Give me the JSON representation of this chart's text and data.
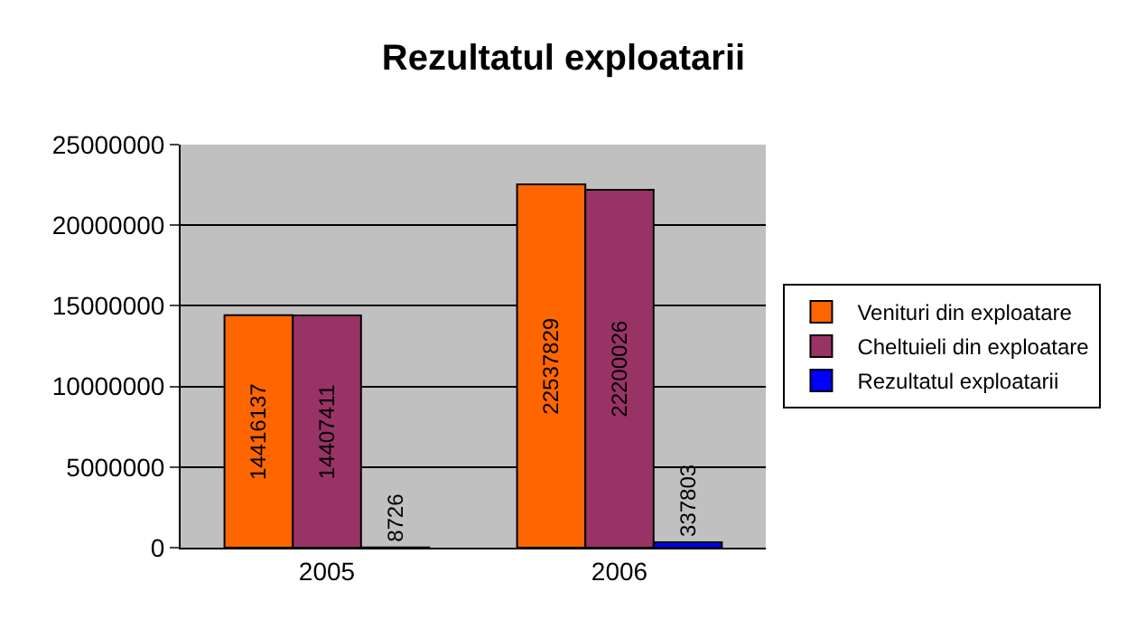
{
  "chart_data": {
    "type": "bar",
    "title": "Rezultatul exploatarii",
    "categories": [
      "2005",
      "2006"
    ],
    "series": [
      {
        "name": "Venituri din exploatare",
        "color": "#ff6600",
        "values": [
          14416137,
          22537829
        ]
      },
      {
        "name": "Cheltuieli din exploatare",
        "color": "#993366",
        "values": [
          14407411,
          22200026
        ]
      },
      {
        "name": "Rezultatul exploatarii",
        "color": "#0000ff",
        "values": [
          8726,
          337803
        ]
      }
    ],
    "ylim": [
      0,
      25000000
    ],
    "yticks": [
      0,
      5000000,
      10000000,
      15000000,
      20000000,
      25000000
    ],
    "grid": "y",
    "legend": "right",
    "data_labels": true
  }
}
